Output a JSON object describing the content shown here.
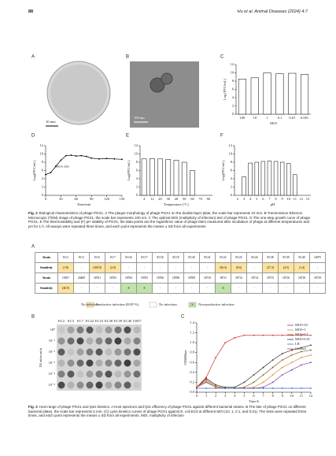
{
  "header": {
    "page": "88",
    "running_title": "Hu et al. Animal Diseases (2024) 4:7"
  },
  "figure2": {
    "panel_labels": [
      "A",
      "B",
      "C",
      "D",
      "E",
      "F"
    ],
    "a_scale": "10 mm",
    "b_scale": "100 nm",
    "charts": [
      {
        "type": "bar",
        "xlabel": "MOI",
        "ylabel": "Log (PFU/mL)",
        "categories": [
          "100",
          "10",
          "1",
          "0.1",
          "0.01",
          "0.001"
        ],
        "values": [
          8.5,
          8.8,
          10,
          9.8,
          9.9,
          9.6
        ],
        "ylim": [
          0,
          12
        ],
        "yticks": [
          0,
          2,
          4,
          6,
          8,
          10,
          12
        ]
      },
      {
        "type": "line",
        "xlabel": "Time/min",
        "ylabel": "Log(PFU/mL)",
        "annotation": "Burst size",
        "x": [
          0,
          10,
          20,
          30,
          40,
          50,
          60,
          70,
          80,
          90,
          105,
          120,
          135,
          150
        ],
        "values": [
          5,
          5.5,
          7,
          8.5,
          9.6,
          9.7,
          9.5,
          9.6,
          9.4,
          9,
          8.8,
          8.9,
          8.8,
          8.7
        ],
        "xlim": [
          0,
          150
        ],
        "xticks": [
          0,
          30,
          60,
          90,
          120,
          150
        ],
        "ylim": [
          0,
          12
        ],
        "yticks": [
          0,
          2,
          4,
          6,
          8,
          10,
          12
        ]
      },
      {
        "type": "bar",
        "xlabel": "Temperature (°C)",
        "ylabel": "Log(PFU/mL)",
        "categories": [
          "4",
          "12",
          "20",
          "30",
          "40",
          "50",
          "60",
          "70",
          "80"
        ],
        "values": [
          8.8,
          8.9,
          8.8,
          8.7,
          8.5,
          8.0,
          6.0,
          null,
          null
        ],
        "ylim": [
          0,
          12
        ],
        "yticks": [
          0,
          2,
          4,
          6,
          8,
          10,
          12
        ]
      },
      {
        "type": "bar",
        "xlabel": "pH",
        "ylabel": "Log(PFU/mL)",
        "categories": [
          "2",
          "3",
          "4",
          "5",
          "6",
          "7",
          "8",
          "9",
          "10",
          "11",
          "12",
          "13"
        ],
        "values": [
          null,
          4.5,
          7.8,
          8,
          8.2,
          8.3,
          8.2,
          8,
          7.7,
          5,
          null,
          null
        ],
        "ylim": [
          0,
          12
        ],
        "yticks": [
          0,
          2,
          4,
          6,
          8,
          10,
          12
        ]
      }
    ],
    "caption": {
      "label": "Fig. 2",
      "text": "Biological characteristics of phage PGX1. A The plaque morphology of phage PGX1 on the double-layer plate, the scale bar represents 10 mm. B Transmission Electron Microscopic (TEM) image of phage PGX1, the scale bar represents 100 nm. C The optimal MOI (multiplicity of infection) test of phage PGX1. D The one-step growth curve of phage PGX1. E The thermostability and (F) pH stability of PGX1, the data points are the logarithmic value of phage titers measured after incubation of phage at different temperatures and pH for 1 h. All assays were repeated three times, and each point represents the means ± SD from all experiments"
    }
  },
  "figure3": {
    "panel_labels": [
      "A",
      "B",
      "C"
    ],
    "table": {
      "rows": [
        [
          "Strain",
          "EC2",
          "EC3",
          "EC6",
          "EC7",
          "EC16",
          "EC17",
          "EC18",
          "EC19",
          "EC20",
          "EC21",
          "EC22",
          "EC23",
          "EC24",
          "EC38",
          "EC39",
          "EC40",
          "14075"
        ],
        [
          "Sensitivity",
          "(1.8)",
          "-",
          "(100.0)",
          "(2.0)",
          "-",
          "-",
          "-",
          "-",
          "-",
          "-",
          "(36.4)",
          "(8.6)",
          "-",
          "(37.3)",
          "(4.5)",
          "(1.4)",
          "-"
        ],
        [
          "Strain",
          "15057",
          "20409",
          "18701",
          "18703",
          "18704",
          "18705",
          "18706",
          "18708",
          "18709",
          "18710",
          "18711",
          "18712",
          "18714",
          "18715",
          "18716",
          "18718",
          "18719"
        ],
        [
          "Sensitivity",
          "(40.9)",
          "-",
          "-",
          "-",
          "S",
          "S",
          "-",
          "-",
          "-",
          "-",
          "S",
          "-",
          "-",
          "-",
          "-",
          "-",
          "-"
        ]
      ]
    },
    "legend": [
      "Productive infection (EOP %)",
      "No infection",
      "S",
      "Non-productive infection"
    ],
    "plates": {
      "ylabel": "Dilution ratio",
      "columns": [
        "EC2",
        "EC3",
        "EC7",
        "EC22",
        "EC23",
        "EC38",
        "EC39",
        "EC40",
        "15057"
      ],
      "rows": [
        "10⁰",
        "10⁻¹",
        "10⁻²",
        "10⁻³",
        "10⁻⁴",
        "10⁻⁵"
      ]
    },
    "chart": {
      "type": "line",
      "xlabel": "Time/h",
      "ylabel": "OD600nm",
      "x": [
        0,
        1,
        2,
        3,
        4,
        5,
        6,
        7,
        8,
        9,
        10,
        11,
        12
      ],
      "xlim": [
        0,
        12
      ],
      "xticks": [
        0,
        1,
        2,
        3,
        4,
        5,
        6,
        7,
        8,
        9,
        10,
        11,
        12
      ],
      "ylim": [
        0,
        1.4
      ],
      "yticks": [
        {
          "value": 0,
          "label": "0.0"
        },
        0.2,
        0.4,
        0.6,
        0.8,
        {
          "value": 1,
          "label": "1.0"
        },
        1.2,
        1.4
      ],
      "series": [
        {
          "name": "MOI=10",
          "color": "#7b3f9e",
          "values": [
            0.1,
            0.2,
            0.1,
            0.08,
            0.08,
            0.08,
            0.08,
            0.1,
            0.2,
            0.35,
            0.45,
            0.55,
            0.6
          ]
        },
        {
          "name": "MOI=1",
          "color": "#e08a2b",
          "values": [
            0.1,
            0.22,
            0.1,
            0.08,
            0.08,
            0.08,
            0.1,
            0.2,
            0.35,
            0.5,
            0.6,
            0.7,
            0.75
          ]
        },
        {
          "name": "MOI=0.1",
          "color": "#8a5a2b",
          "values": [
            0.1,
            0.25,
            0.12,
            0.08,
            0.08,
            0.1,
            0.2,
            0.35,
            0.5,
            0.65,
            0.75,
            0.82,
            0.85
          ]
        },
        {
          "name": "MOI=0.01",
          "color": "#333333",
          "values": [
            0.1,
            0.28,
            0.15,
            0.1,
            0.1,
            0.2,
            0.35,
            0.5,
            0.65,
            0.78,
            0.85,
            0.9,
            0.95
          ]
        },
        {
          "name": "LB",
          "color": "#3a6fc4",
          "values": [
            0.08,
            0.08,
            0.08,
            0.08,
            0.08,
            0.08,
            0.08,
            0.08,
            0.08,
            0.08,
            0.08,
            0.08,
            0.08
          ]
        },
        {
          "name": "Control",
          "color": "#d93030",
          "values": [
            0.1,
            0.3,
            0.7,
            1.0,
            1.1,
            1.15,
            1.15,
            1.15,
            1.15,
            1.15,
            1.15,
            1.15,
            1.15
          ]
        }
      ]
    },
    "caption": {
      "label": "Fig. 3",
      "text": "Host range of phage PGX1 and lysis kinetics. A Host spectrum and lytic efficiency of phage PGX1 against different bacterial strains. B The titer of phage PGX1 on different bacterial plates, the scale bar represents 5 mm. (C) Lysis kinetics curves of phage PGX1 against E. coli EC6 at different MOI (10, 1, 0.1, and 0.01). The tests were repeated three times, and each point represents the means ± SD from all experiments. MOI, multiplicity of infection"
    }
  }
}
